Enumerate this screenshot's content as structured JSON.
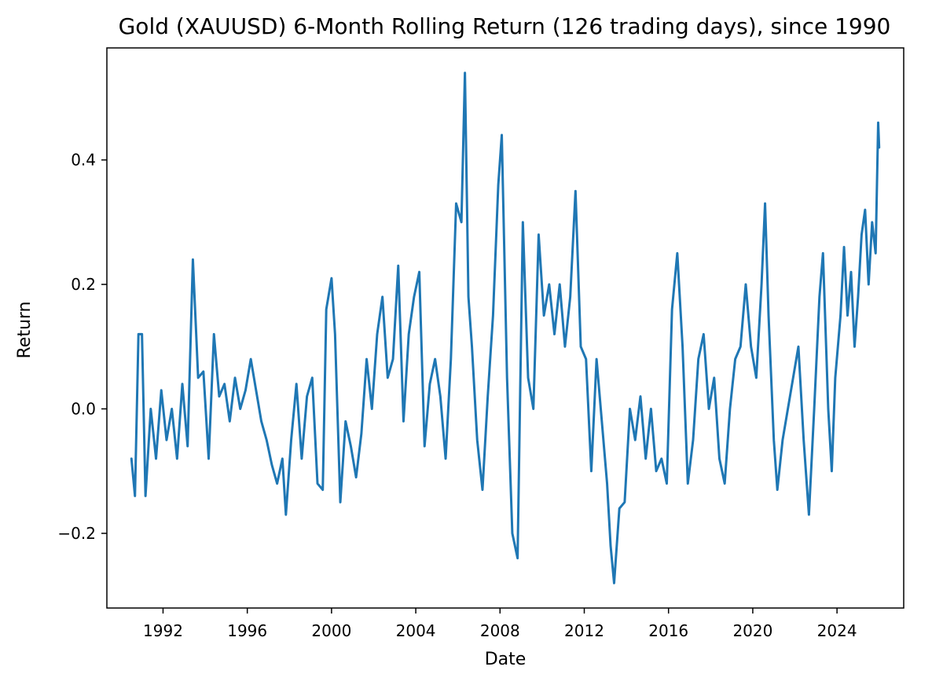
{
  "chart_data": {
    "type": "line",
    "title": "Gold (XAUUSD) 6-Month Rolling Return (126 trading days), since 1990",
    "xlabel": "Date",
    "ylabel": "Return",
    "xlim": [
      "1989-05-01",
      "2027-03-01"
    ],
    "ylim": [
      -0.32,
      0.58
    ],
    "x_ticks": [
      "1992",
      "1996",
      "2000",
      "2004",
      "2008",
      "2012",
      "2016",
      "2020",
      "2024"
    ],
    "y_ticks": [
      {
        "value": -0.2,
        "label": "−0.2"
      },
      {
        "value": 0.0,
        "label": "0.0"
      },
      {
        "value": 0.2,
        "label": "0.2"
      },
      {
        "value": 0.4,
        "label": "0.4"
      }
    ],
    "grid": false,
    "legend": "none",
    "series": [
      {
        "color": "#1f77b4",
        "points": [
          [
            "1990-07-01",
            -0.08
          ],
          [
            "1990-09-01",
            -0.14
          ],
          [
            "1990-11-01",
            0.12
          ],
          [
            "1991-01-01",
            0.12
          ],
          [
            "1991-03-01",
            -0.14
          ],
          [
            "1991-06-01",
            0.0
          ],
          [
            "1991-09-01",
            -0.08
          ],
          [
            "1991-12-01",
            0.03
          ],
          [
            "1992-03-01",
            -0.05
          ],
          [
            "1992-06-01",
            0.0
          ],
          [
            "1992-09-01",
            -0.08
          ],
          [
            "1992-12-01",
            0.04
          ],
          [
            "1993-03-01",
            -0.06
          ],
          [
            "1993-06-01",
            0.24
          ],
          [
            "1993-09-01",
            0.05
          ],
          [
            "1993-12-01",
            0.06
          ],
          [
            "1994-03-01",
            -0.08
          ],
          [
            "1994-06-01",
            0.12
          ],
          [
            "1994-09-01",
            0.02
          ],
          [
            "1994-12-01",
            0.04
          ],
          [
            "1995-03-01",
            -0.02
          ],
          [
            "1995-06-01",
            0.05
          ],
          [
            "1995-09-01",
            0.0
          ],
          [
            "1995-12-01",
            0.03
          ],
          [
            "1996-03-01",
            0.08
          ],
          [
            "1996-06-01",
            0.03
          ],
          [
            "1996-09-01",
            -0.02
          ],
          [
            "1996-12-01",
            -0.05
          ],
          [
            "1997-03-01",
            -0.09
          ],
          [
            "1997-06-01",
            -0.12
          ],
          [
            "1997-09-01",
            -0.08
          ],
          [
            "1997-11-01",
            -0.17
          ],
          [
            "1998-02-01",
            -0.05
          ],
          [
            "1998-05-01",
            0.04
          ],
          [
            "1998-08-01",
            -0.08
          ],
          [
            "1998-11-01",
            0.02
          ],
          [
            "1999-02-01",
            0.05
          ],
          [
            "1999-05-01",
            -0.12
          ],
          [
            "1999-08-01",
            -0.13
          ],
          [
            "1999-10-01",
            0.16
          ],
          [
            "2000-01-01",
            0.21
          ],
          [
            "2000-03-01",
            0.12
          ],
          [
            "2000-06-01",
            -0.15
          ],
          [
            "2000-09-01",
            -0.02
          ],
          [
            "2000-12-01",
            -0.06
          ],
          [
            "2001-03-01",
            -0.11
          ],
          [
            "2001-06-01",
            -0.04
          ],
          [
            "2001-09-01",
            0.08
          ],
          [
            "2001-12-01",
            0.0
          ],
          [
            "2002-03-01",
            0.12
          ],
          [
            "2002-06-01",
            0.18
          ],
          [
            "2002-09-01",
            0.05
          ],
          [
            "2002-12-01",
            0.08
          ],
          [
            "2003-03-01",
            0.23
          ],
          [
            "2003-06-01",
            -0.02
          ],
          [
            "2003-09-01",
            0.12
          ],
          [
            "2003-12-01",
            0.18
          ],
          [
            "2004-03-01",
            0.22
          ],
          [
            "2004-06-01",
            -0.06
          ],
          [
            "2004-09-01",
            0.04
          ],
          [
            "2004-12-01",
            0.08
          ],
          [
            "2005-03-01",
            0.02
          ],
          [
            "2005-06-01",
            -0.08
          ],
          [
            "2005-09-01",
            0.08
          ],
          [
            "2005-12-01",
            0.33
          ],
          [
            "2006-03-01",
            0.3
          ],
          [
            "2006-05-01",
            0.54
          ],
          [
            "2006-07-01",
            0.18
          ],
          [
            "2006-09-01",
            0.1
          ],
          [
            "2006-12-01",
            -0.05
          ],
          [
            "2007-03-01",
            -0.13
          ],
          [
            "2007-06-01",
            0.02
          ],
          [
            "2007-09-01",
            0.15
          ],
          [
            "2007-12-01",
            0.36
          ],
          [
            "2008-02-01",
            0.44
          ],
          [
            "2008-05-01",
            0.05
          ],
          [
            "2008-08-01",
            -0.2
          ],
          [
            "2008-11-01",
            -0.24
          ],
          [
            "2009-02-01",
            0.3
          ],
          [
            "2009-05-01",
            0.05
          ],
          [
            "2009-08-01",
            0.0
          ],
          [
            "2009-11-01",
            0.28
          ],
          [
            "2010-02-01",
            0.15
          ],
          [
            "2010-05-01",
            0.2
          ],
          [
            "2010-08-01",
            0.12
          ],
          [
            "2010-11-01",
            0.2
          ],
          [
            "2011-02-01",
            0.1
          ],
          [
            "2011-05-01",
            0.18
          ],
          [
            "2011-08-01",
            0.35
          ],
          [
            "2011-11-01",
            0.1
          ],
          [
            "2012-02-01",
            0.08
          ],
          [
            "2012-05-01",
            -0.1
          ],
          [
            "2012-08-01",
            0.08
          ],
          [
            "2012-11-01",
            -0.02
          ],
          [
            "2013-02-01",
            -0.12
          ],
          [
            "2013-04-01",
            -0.22
          ],
          [
            "2013-06-01",
            -0.28
          ],
          [
            "2013-09-01",
            -0.16
          ],
          [
            "2013-12-01",
            -0.15
          ],
          [
            "2014-03-01",
            0.0
          ],
          [
            "2014-06-01",
            -0.05
          ],
          [
            "2014-09-01",
            0.02
          ],
          [
            "2014-12-01",
            -0.08
          ],
          [
            "2015-03-01",
            0.0
          ],
          [
            "2015-06-01",
            -0.1
          ],
          [
            "2015-09-01",
            -0.08
          ],
          [
            "2015-12-01",
            -0.12
          ],
          [
            "2016-03-01",
            0.16
          ],
          [
            "2016-06-01",
            0.25
          ],
          [
            "2016-09-01",
            0.1
          ],
          [
            "2016-12-01",
            -0.12
          ],
          [
            "2017-03-01",
            -0.05
          ],
          [
            "2017-06-01",
            0.08
          ],
          [
            "2017-09-01",
            0.12
          ],
          [
            "2017-12-01",
            0.0
          ],
          [
            "2018-03-01",
            0.05
          ],
          [
            "2018-06-01",
            -0.08
          ],
          [
            "2018-09-01",
            -0.12
          ],
          [
            "2018-12-01",
            0.0
          ],
          [
            "2019-03-01",
            0.08
          ],
          [
            "2019-06-01",
            0.1
          ],
          [
            "2019-09-01",
            0.2
          ],
          [
            "2019-12-01",
            0.1
          ],
          [
            "2020-03-01",
            0.05
          ],
          [
            "2020-06-01",
            0.2
          ],
          [
            "2020-08-01",
            0.33
          ],
          [
            "2020-10-01",
            0.15
          ],
          [
            "2021-01-01",
            -0.05
          ],
          [
            "2021-03-01",
            -0.13
          ],
          [
            "2021-06-01",
            -0.05
          ],
          [
            "2021-09-01",
            0.0
          ],
          [
            "2021-12-01",
            0.05
          ],
          [
            "2022-03-01",
            0.1
          ],
          [
            "2022-06-01",
            -0.05
          ],
          [
            "2022-09-01",
            -0.17
          ],
          [
            "2022-12-01",
            0.0
          ],
          [
            "2023-03-01",
            0.18
          ],
          [
            "2023-05-01",
            0.25
          ],
          [
            "2023-08-01",
            0.0
          ],
          [
            "2023-10-01",
            -0.1
          ],
          [
            "2023-12-01",
            0.05
          ],
          [
            "2024-03-01",
            0.15
          ],
          [
            "2024-05-01",
            0.26
          ],
          [
            "2024-07-01",
            0.15
          ],
          [
            "2024-09-01",
            0.22
          ],
          [
            "2024-11-01",
            0.1
          ],
          [
            "2025-01-01",
            0.18
          ],
          [
            "2025-03-01",
            0.28
          ],
          [
            "2025-05-01",
            0.32
          ],
          [
            "2025-07-01",
            0.2
          ],
          [
            "2025-09-01",
            0.3
          ],
          [
            "2025-11-01",
            0.25
          ],
          [
            "2025-12-15",
            0.46
          ],
          [
            "2026-01-01",
            0.42
          ]
        ]
      }
    ]
  }
}
